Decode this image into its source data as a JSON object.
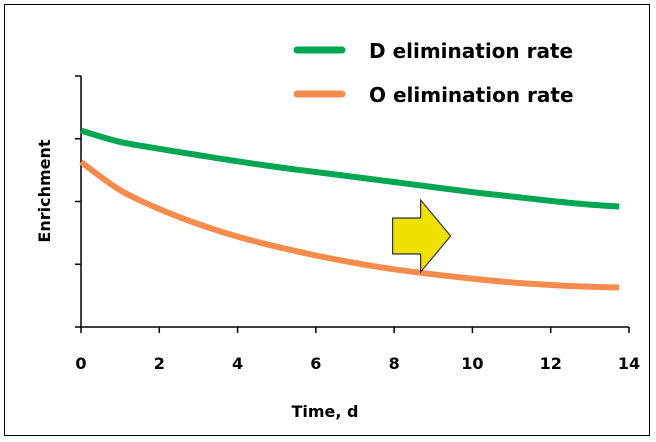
{
  "chart_data": {
    "type": "line",
    "title": "",
    "xlabel": "Time, d",
    "ylabel": "Enrichment",
    "xlim": [
      0,
      14
    ],
    "xticks": [
      0,
      2,
      4,
      6,
      8,
      10,
      12,
      14
    ],
    "ylim": [
      0,
      4
    ],
    "y_tick_count": 5,
    "y_tick_labels_shown": false,
    "grid": false,
    "legend_position": "top-right",
    "series": [
      {
        "name": "D elimination rate",
        "color": "#00a651",
        "x": [
          0,
          1,
          2,
          3,
          4,
          5,
          6,
          7,
          8,
          9,
          10,
          11,
          12,
          13,
          13.75
        ],
        "y": [
          3.13,
          2.95,
          2.84,
          2.74,
          2.64,
          2.55,
          2.47,
          2.39,
          2.31,
          2.23,
          2.15,
          2.08,
          2.01,
          1.95,
          1.92
        ]
      },
      {
        "name": "O elimination rate",
        "color": "#f58b4c",
        "x": [
          0,
          1,
          2,
          3,
          4,
          5,
          6,
          7,
          8,
          9,
          10,
          11,
          12,
          13,
          13.75
        ],
        "y": [
          2.63,
          2.18,
          1.88,
          1.64,
          1.44,
          1.28,
          1.14,
          1.02,
          0.92,
          0.84,
          0.77,
          0.71,
          0.67,
          0.64,
          0.63
        ]
      }
    ],
    "annotation": {
      "type": "arrow",
      "color": "#f0e000",
      "direction": "right",
      "x": 8.6,
      "y": 1.45
    }
  }
}
